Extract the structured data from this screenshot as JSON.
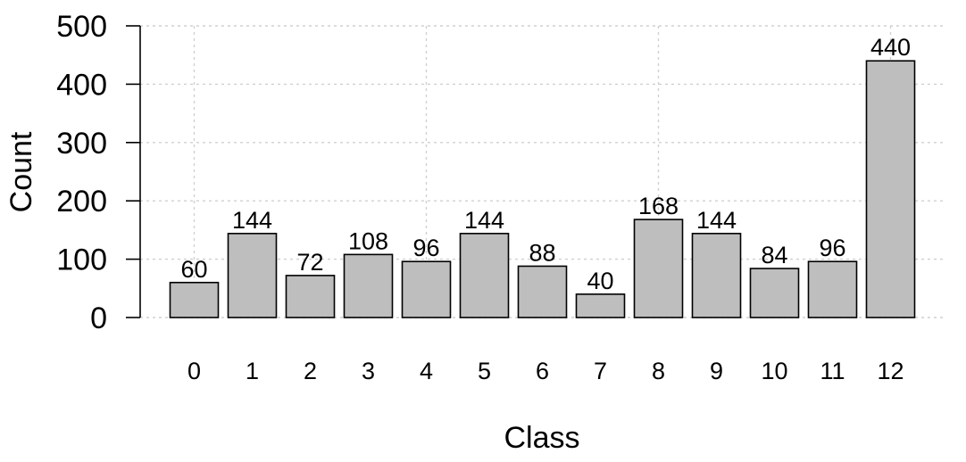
{
  "chart_data": {
    "type": "bar",
    "title": "",
    "xlabel": "Class",
    "ylabel": "Count",
    "categories": [
      "0",
      "1",
      "2",
      "3",
      "4",
      "5",
      "6",
      "7",
      "8",
      "9",
      "10",
      "11",
      "12"
    ],
    "values": [
      60,
      144,
      72,
      108,
      96,
      144,
      88,
      40,
      168,
      144,
      84,
      96,
      440
    ],
    "data_labels": [
      "60",
      "144",
      "72",
      "108",
      "96",
      "144",
      "88",
      "40",
      "168",
      "144",
      "84",
      "96",
      "440"
    ],
    "ylim": [
      0,
      500
    ],
    "yticks": [
      "0",
      "100",
      "200",
      "300",
      "400",
      "500"
    ],
    "grid": true,
    "legend": "none",
    "colors": {
      "bar_fill": "#bebebe",
      "bar_stroke": "#000000",
      "grid": "#d0d0d0"
    }
  }
}
